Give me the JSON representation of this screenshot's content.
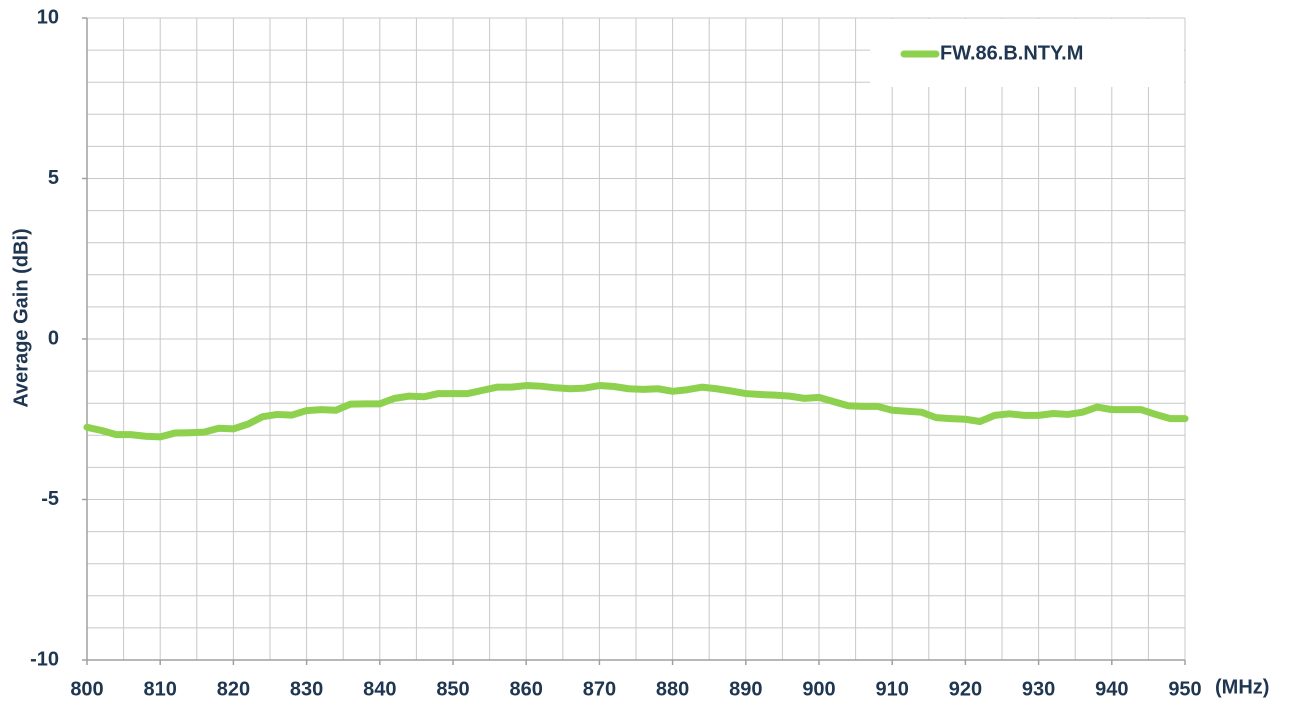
{
  "chart_data": {
    "type": "line",
    "x_label": "(MHz)",
    "y_label": "Average Gain (dBi)",
    "x": [
      800,
      802,
      804,
      806,
      808,
      810,
      812,
      814,
      816,
      818,
      820,
      822,
      824,
      826,
      828,
      830,
      832,
      834,
      836,
      838,
      840,
      842,
      844,
      846,
      848,
      850,
      852,
      854,
      856,
      858,
      860,
      862,
      864,
      866,
      868,
      870,
      872,
      874,
      876,
      878,
      880,
      882,
      884,
      886,
      888,
      890,
      892,
      894,
      896,
      898,
      900,
      902,
      904,
      906,
      908,
      910,
      912,
      914,
      916,
      918,
      920,
      922,
      924,
      926,
      928,
      930,
      932,
      934,
      936,
      938,
      940,
      942,
      944,
      946,
      948,
      950
    ],
    "series": [
      {
        "name": "FW.86.B.NTY.M",
        "color": "#8dd14f",
        "values": [
          -2.75,
          -2.85,
          -2.98,
          -2.98,
          -3.03,
          -3.05,
          -2.93,
          -2.92,
          -2.9,
          -2.78,
          -2.8,
          -2.65,
          -2.42,
          -2.35,
          -2.37,
          -2.23,
          -2.2,
          -2.22,
          -2.03,
          -2.02,
          -2.02,
          -1.85,
          -1.78,
          -1.8,
          -1.7,
          -1.7,
          -1.7,
          -1.6,
          -1.5,
          -1.5,
          -1.45,
          -1.47,
          -1.52,
          -1.55,
          -1.53,
          -1.45,
          -1.48,
          -1.55,
          -1.57,
          -1.55,
          -1.63,
          -1.58,
          -1.5,
          -1.55,
          -1.62,
          -1.7,
          -1.73,
          -1.75,
          -1.78,
          -1.85,
          -1.82,
          -1.95,
          -2.08,
          -2.1,
          -2.1,
          -2.22,
          -2.25,
          -2.28,
          -2.45,
          -2.48,
          -2.5,
          -2.57,
          -2.38,
          -2.33,
          -2.38,
          -2.38,
          -2.32,
          -2.35,
          -2.28,
          -2.12,
          -2.2,
          -2.2,
          -2.2,
          -2.35,
          -2.48,
          -2.48
        ]
      }
    ],
    "xlim": [
      800,
      950
    ],
    "xticks": [
      800,
      810,
      820,
      830,
      840,
      850,
      860,
      870,
      880,
      890,
      900,
      910,
      920,
      930,
      940,
      950
    ],
    "ylim": [
      -10,
      10
    ],
    "yticks": [
      -10,
      -5,
      0,
      5,
      10
    ],
    "x_gridlines": [
      800,
      805,
      810,
      815,
      820,
      825,
      830,
      835,
      840,
      845,
      850,
      855,
      860,
      865,
      870,
      875,
      880,
      885,
      890,
      895,
      900,
      905,
      910,
      915,
      920,
      925,
      930,
      935,
      940,
      945,
      950
    ],
    "y_gridlines": [
      -10,
      -9,
      -8,
      -7,
      -6,
      -5,
      -4,
      -3,
      -2,
      -1,
      0,
      1,
      2,
      3,
      4,
      5,
      6,
      7,
      8,
      9,
      10
    ],
    "grid": true,
    "legend": "upper right"
  }
}
